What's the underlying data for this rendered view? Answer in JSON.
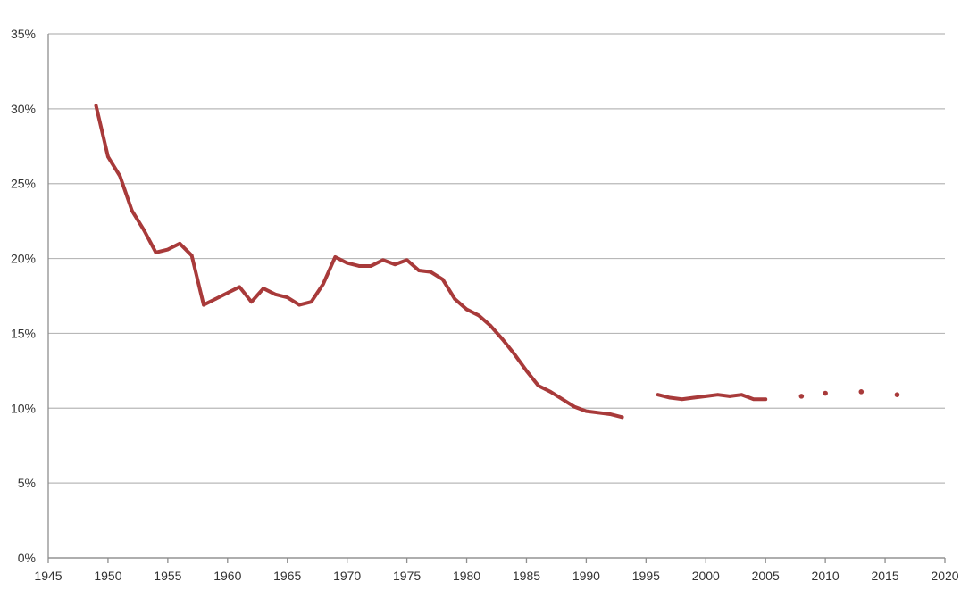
{
  "chart_data": {
    "type": "line",
    "x_ticks": [
      "1945",
      "1950",
      "1955",
      "1960",
      "1965",
      "1970",
      "1975",
      "1980",
      "1985",
      "1990",
      "1995",
      "2000",
      "2005",
      "2010",
      "2015",
      "2020"
    ],
    "y_ticks": [
      "0%",
      "5%",
      "10%",
      "15%",
      "20%",
      "25%",
      "30%",
      "35%"
    ],
    "xlim": [
      1945,
      2020
    ],
    "ylim": [
      0,
      35
    ],
    "grid": true,
    "series_color": "#a83a3a",
    "segments": [
      [
        [
          1949,
          30.2
        ],
        [
          1950,
          26.8
        ],
        [
          1951,
          25.5
        ],
        [
          1952,
          23.2
        ],
        [
          1953,
          21.9
        ],
        [
          1954,
          20.4
        ],
        [
          1955,
          20.6
        ],
        [
          1956,
          21.0
        ],
        [
          1957,
          20.2
        ],
        [
          1958,
          16.9
        ],
        [
          1959,
          17.3
        ],
        [
          1960,
          17.7
        ],
        [
          1961,
          18.1
        ],
        [
          1962,
          17.1
        ],
        [
          1963,
          18.0
        ],
        [
          1964,
          17.6
        ],
        [
          1965,
          17.4
        ],
        [
          1966,
          16.9
        ],
        [
          1967,
          17.1
        ],
        [
          1968,
          18.3
        ],
        [
          1969,
          20.1
        ],
        [
          1970,
          19.7
        ],
        [
          1971,
          19.5
        ],
        [
          1972,
          19.5
        ],
        [
          1973,
          19.9
        ],
        [
          1974,
          19.6
        ],
        [
          1975,
          19.9
        ],
        [
          1976,
          19.2
        ],
        [
          1977,
          19.1
        ],
        [
          1978,
          18.6
        ],
        [
          1979,
          17.3
        ],
        [
          1980,
          16.6
        ],
        [
          1981,
          16.2
        ],
        [
          1982,
          15.5
        ],
        [
          1983,
          14.6
        ],
        [
          1984,
          13.6
        ],
        [
          1985,
          12.5
        ],
        [
          1986,
          11.5
        ],
        [
          1987,
          11.1
        ],
        [
          1988,
          10.6
        ],
        [
          1989,
          10.1
        ],
        [
          1990,
          9.8
        ],
        [
          1991,
          9.7
        ],
        [
          1992,
          9.6
        ],
        [
          1993,
          9.4
        ]
      ],
      [
        [
          1996,
          10.9
        ],
        [
          1997,
          10.7
        ],
        [
          1998,
          10.6
        ],
        [
          1999,
          10.7
        ],
        [
          2000,
          10.8
        ],
        [
          2001,
          10.9
        ],
        [
          2002,
          10.8
        ],
        [
          2003,
          10.9
        ],
        [
          2004,
          10.6
        ],
        [
          2005,
          10.6
        ]
      ]
    ],
    "points": [
      [
        2008,
        10.8
      ],
      [
        2010,
        11.0
      ],
      [
        2013,
        11.1
      ],
      [
        2016,
        10.9
      ]
    ]
  }
}
